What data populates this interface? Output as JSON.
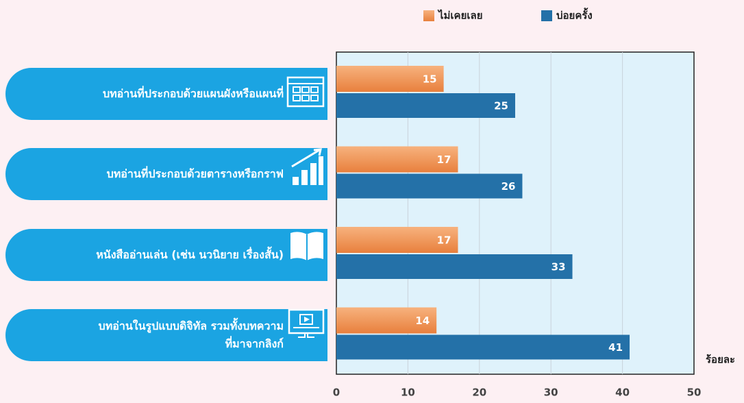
{
  "chart_data": {
    "type": "bar",
    "orientation": "horizontal",
    "categories": [
      "บทอ่านที่ประกอบด้วยแผนผังหรือแผนที่",
      "บทอ่านที่ประกอบด้วยตารางหรือกราฟ",
      "หนังสืออ่านเล่น (เช่น นวนิยาย เรื่องสั้น)",
      "บทอ่านในรูปแบบดิจิทัล รวมทั้งบทความ\nที่มาจากลิงก์"
    ],
    "series": [
      {
        "name": "ไม่เคยเลย",
        "color": "#f08a4b",
        "values": [
          15,
          17,
          17,
          14
        ]
      },
      {
        "name": "บ่อยครั้ง",
        "color": "#2471a8",
        "values": [
          25,
          26,
          33,
          41
        ]
      }
    ],
    "xlabel": "ร้อยละ",
    "xlim": [
      0,
      50
    ],
    "xticks": [
      0,
      10,
      20,
      30,
      40,
      50
    ],
    "grid": true,
    "legend": "top"
  }
}
